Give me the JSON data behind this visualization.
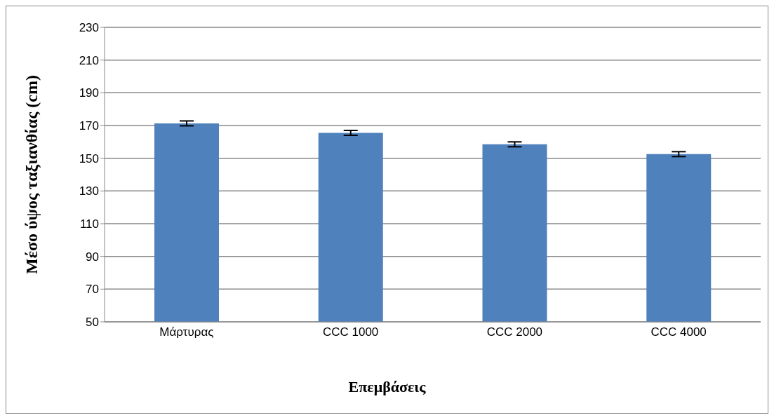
{
  "chart_data": {
    "type": "bar",
    "xlabel": "Επεμβάσεις",
    "ylabel": "Μέσο ύψος ταξιανθίας (cm)",
    "categories": [
      "Μάρτυρας",
      "CCC 1000",
      "CCC 2000",
      "CCC 4000"
    ],
    "values": [
      171.3,
      165.5,
      158.5,
      152.5
    ],
    "errors": [
      1.5,
      1.5,
      1.5,
      1.5
    ],
    "color": "#4f81bd",
    "ylim": [
      50,
      230
    ],
    "yticks": [
      50,
      70,
      90,
      110,
      130,
      150,
      170,
      190,
      210,
      230
    ],
    "grid": "y"
  }
}
